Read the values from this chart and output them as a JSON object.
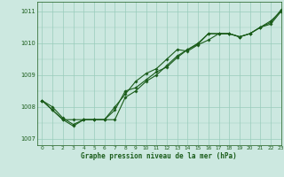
{
  "xlabel": "Graphe pression niveau de la mer (hPa)",
  "xlim": [
    -0.5,
    23
  ],
  "ylim": [
    1006.8,
    1011.3
  ],
  "yticks": [
    1007,
    1008,
    1009,
    1010,
    1011
  ],
  "xticks": [
    0,
    1,
    2,
    3,
    4,
    5,
    6,
    7,
    8,
    9,
    10,
    11,
    12,
    13,
    14,
    15,
    16,
    17,
    18,
    19,
    20,
    21,
    22,
    23
  ],
  "bg_color": "#cce8e0",
  "grid_color": "#99ccbb",
  "line_color": "#1a5c1a",
  "series": [
    [
      1008.2,
      1007.9,
      1007.6,
      1007.4,
      1007.6,
      1007.6,
      1007.6,
      1007.6,
      1008.3,
      1008.5,
      1008.8,
      1009.0,
      1009.3,
      1009.6,
      1009.8,
      1010.0,
      1010.3,
      1010.3,
      1010.3,
      1010.2,
      1010.3,
      1010.5,
      1010.7,
      1011.0
    ],
    [
      1008.2,
      1007.9,
      1007.6,
      1007.6,
      1007.6,
      1007.6,
      1007.6,
      1007.9,
      1008.5,
      1008.6,
      1008.85,
      1009.1,
      1009.25,
      1009.55,
      1009.8,
      1009.97,
      1010.3,
      1010.3,
      1010.3,
      1010.2,
      1010.3,
      1010.5,
      1010.6,
      1011.0
    ],
    [
      1008.2,
      1008.0,
      1007.65,
      1007.45,
      1007.6,
      1007.6,
      1007.6,
      1008.0,
      1008.4,
      1008.8,
      1009.05,
      1009.2,
      1009.5,
      1009.8,
      1009.75,
      1009.95,
      1010.1,
      1010.3,
      1010.3,
      1010.2,
      1010.3,
      1010.5,
      1010.65,
      1011.05
    ]
  ],
  "marker": "D",
  "markersize": 1.8,
  "linewidth": 0.8
}
